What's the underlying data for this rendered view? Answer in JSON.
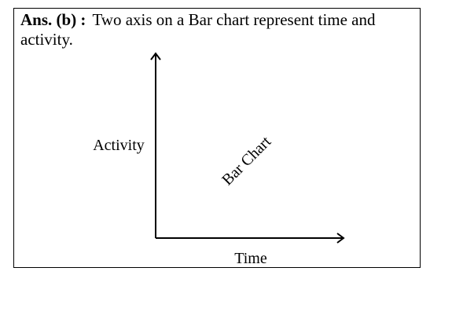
{
  "answer": {
    "label": "Ans. (b) :",
    "text": "Two axis on a Bar chart represent time and activity."
  },
  "diagram": {
    "y_axis_label": "Activity",
    "x_axis_label": "Time",
    "diagonal_label": "Bar Chart"
  }
}
